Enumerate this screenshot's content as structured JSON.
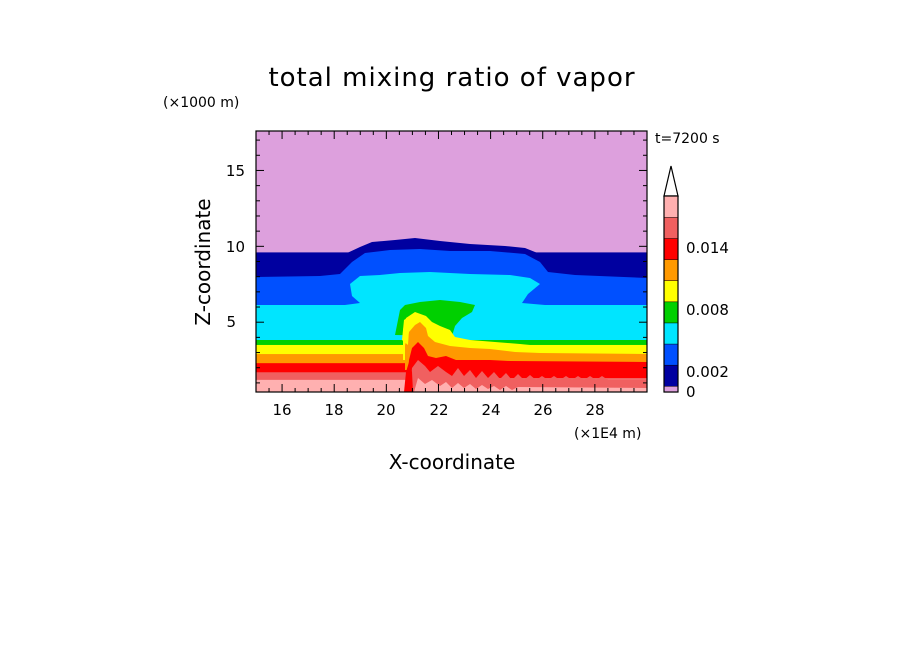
{
  "chart_data": {
    "type": "contour",
    "title": "total mixing ratio of vapor",
    "xlabel": "X-coordinate",
    "ylabel": "Z-coordinate",
    "x_unit": "(×1E4 m)",
    "y_unit": "(×1000 m)",
    "time_label": "t=7200 s",
    "xlim": [
      15,
      30
    ],
    "ylim": [
      0.4,
      17.6
    ],
    "x_ticks": [
      "16",
      "18",
      "20",
      "22",
      "24",
      "26",
      "28"
    ],
    "y_ticks": [
      "5",
      "10",
      "15"
    ],
    "colorbar": {
      "levels": [
        0,
        0.001,
        0.002,
        0.004,
        0.006,
        0.008,
        0.01,
        0.012,
        0.014,
        0.016
      ],
      "labels": [
        "0",
        "0.002",
        "0.008",
        "0.014"
      ],
      "colors": [
        "#dda0dd",
        "#0000a0",
        "#0050ff",
        "#00e5ff",
        "#00d000",
        "#ffff00",
        "#ff9900",
        "#ff0000",
        "#f06060",
        "#ffb0b0"
      ],
      "extend": "max"
    },
    "bands_far_field": [
      {
        "z_top": 17.6,
        "z_bottom": 9.6,
        "color": "#dda0dd"
      },
      {
        "z_top": 9.6,
        "z_bottom": 8.1,
        "color": "#0000a0"
      },
      {
        "z_top": 8.1,
        "z_bottom": 6.1,
        "color": "#0050ff"
      },
      {
        "z_top": 6.1,
        "z_bottom": 4.2,
        "color": "#00e5ff"
      },
      {
        "z_top": 4.2,
        "z_bottom": 3.5,
        "color": "#00d000"
      },
      {
        "z_top": 3.5,
        "z_bottom": 2.9,
        "color": "#ffff00"
      },
      {
        "z_top": 2.9,
        "z_bottom": 2.3,
        "color": "#ff9900"
      },
      {
        "z_top": 2.3,
        "z_bottom": 1.7,
        "color": "#ff0000"
      },
      {
        "z_top": 1.7,
        "z_bottom": 1.2,
        "color": "#f06060"
      },
      {
        "z_top": 1.2,
        "z_bottom": 0.4,
        "color": "#ffb0b0"
      }
    ]
  }
}
